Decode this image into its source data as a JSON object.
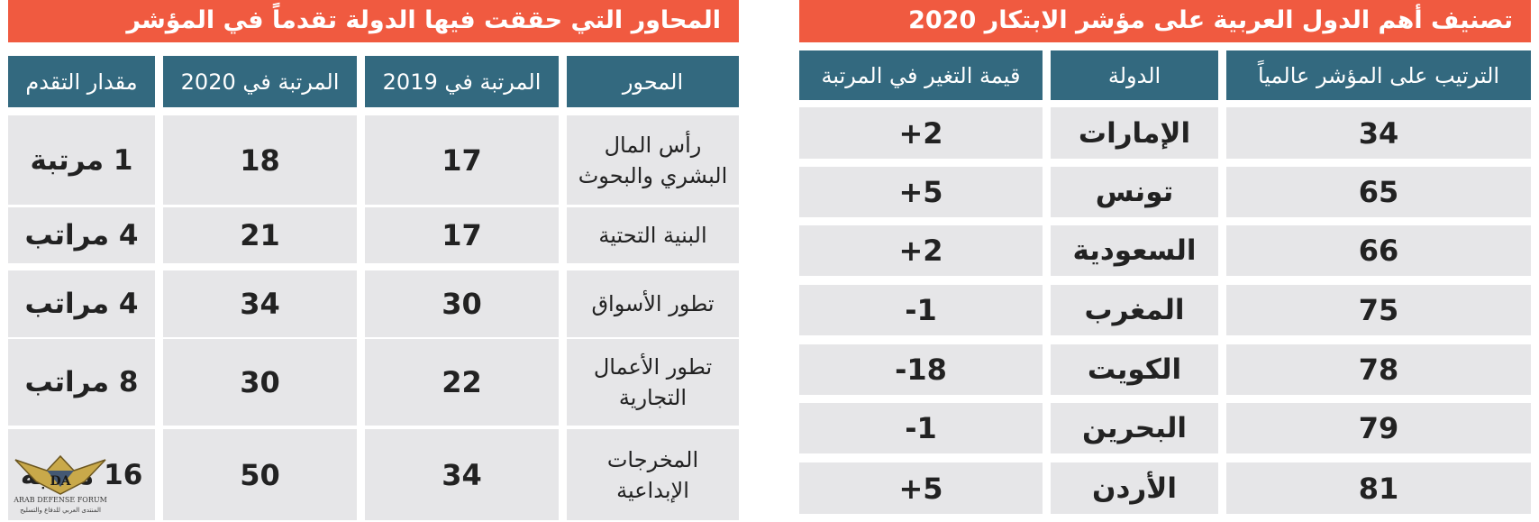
{
  "left_table": {
    "title": "المحاور التي حققت فيها الدولة تقدماً في المؤشر",
    "headers": {
      "axis": "المحور",
      "rank_2019": "المرتبة في 2019",
      "rank_2020": "المرتبة في 2020",
      "progress": "مقدار التقدم"
    },
    "rows": [
      {
        "axis": "رأس المال البشري والبحوث",
        "rank_2019": "17",
        "rank_2020": "18",
        "progress": "1 مرتبة"
      },
      {
        "axis": "البنية التحتية",
        "rank_2019": "17",
        "rank_2020": "21",
        "progress": "4 مراتب"
      },
      {
        "axis": "تطور الأسواق",
        "rank_2019": "30",
        "rank_2020": "34",
        "progress": "4 مراتب"
      },
      {
        "axis": "تطور الأعمال التجارية",
        "rank_2019": "22",
        "rank_2020": "30",
        "progress": "8 مراتب"
      },
      {
        "axis": "المخرجات الإبداعية",
        "rank_2019": "34",
        "rank_2020": "50",
        "progress": "16 مرتبة"
      }
    ]
  },
  "right_table": {
    "title": "تصنيف أهم الدول العربية على مؤشر الابتكار 2020",
    "headers": {
      "rank": "الترتيب على المؤشر عالمياً",
      "country": "الدولة",
      "change": "قيمة التغير في المرتبة"
    },
    "rows": [
      {
        "rank": "34",
        "country": "الإمارات",
        "change": "+2"
      },
      {
        "rank": "65",
        "country": "تونس",
        "change": "+5"
      },
      {
        "rank": "66",
        "country": "السعودية",
        "change": "+2"
      },
      {
        "rank": "75",
        "country": "المغرب",
        "change": "-1"
      },
      {
        "rank": "78",
        "country": "الكويت",
        "change": "-18"
      },
      {
        "rank": "79",
        "country": "البحرين",
        "change": "-1"
      },
      {
        "rank": "81",
        "country": "الأردن",
        "change": "+5"
      }
    ]
  },
  "watermark": {
    "logo": "DA",
    "line1": "ARAB DEFENSE FORUM",
    "line2": "المنتدى العربي للدفاع والتسليح"
  },
  "colors": {
    "banner": "#f05a40",
    "header": "#33697f",
    "cell": "#e6e6e8"
  }
}
